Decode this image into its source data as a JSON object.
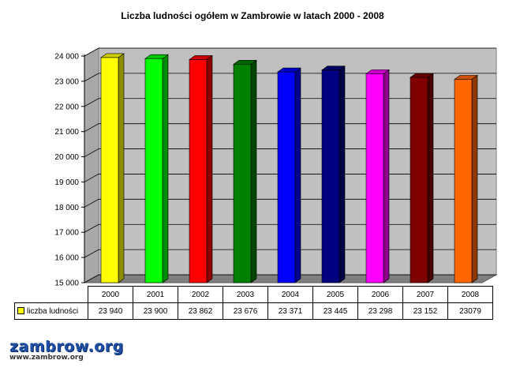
{
  "chart_data": {
    "type": "bar",
    "title": "Liczba ludności ogółem w Zambrowie w latach 2000 - 2008",
    "categories": [
      "2000",
      "2001",
      "2002",
      "2003",
      "2004",
      "2005",
      "2006",
      "2007",
      "2008"
    ],
    "series": [
      {
        "name": "liczba ludności",
        "values": [
          23940,
          23900,
          23862,
          23676,
          23371,
          23445,
          23298,
          23152,
          23079
        ]
      }
    ],
    "value_labels": [
      "23 940",
      "23 900",
      "23 862",
      "23 676",
      "23 371",
      "23 445",
      "23 298",
      "23 152",
      "23079"
    ],
    "bar_colors": [
      "#ffff00",
      "#00ff00",
      "#ff0000",
      "#008000",
      "#0000ff",
      "#000080",
      "#ff00ff",
      "#800000",
      "#ff6600"
    ],
    "ylim": [
      15000,
      24000
    ],
    "y_ticks": [
      15000,
      16000,
      17000,
      18000,
      19000,
      20000,
      21000,
      22000,
      23000,
      24000
    ],
    "y_tick_labels": [
      "15 000",
      "16 000",
      "17 000",
      "18 000",
      "19 000",
      "20 000",
      "21 000",
      "22 000",
      "23 000",
      "24 000"
    ],
    "grid": true,
    "legend": "data-table"
  },
  "logo": {
    "name": "zambrow.org",
    "url": "www.zambrow.org"
  }
}
